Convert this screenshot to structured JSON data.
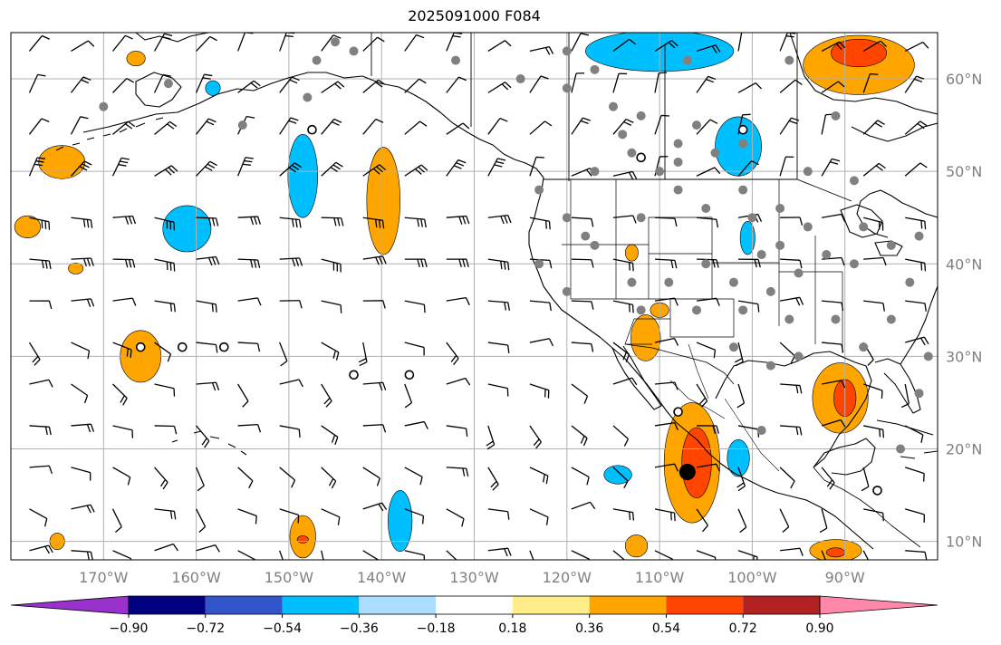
{
  "title": "2025091000 F084",
  "colors": {
    "background": "#ffffff",
    "gridline": "#b0b0b0",
    "coast": "#000000",
    "tick_label": "#808080"
  },
  "map": {
    "projection": "PlateCarree",
    "lon_range": [
      -180,
      -80
    ],
    "lat_range": [
      8,
      65
    ],
    "lat_labels": [
      {
        "lat": 60,
        "text": "60°N"
      },
      {
        "lat": 50,
        "text": "50°N"
      },
      {
        "lat": 40,
        "text": "40°N"
      },
      {
        "lat": 30,
        "text": "30°N"
      },
      {
        "lat": 20,
        "text": "20°N"
      },
      {
        "lat": 10,
        "text": "10°N"
      }
    ],
    "lon_labels": [
      {
        "lon": -170,
        "text": "170°W"
      },
      {
        "lon": -160,
        "text": "160°W"
      },
      {
        "lon": -150,
        "text": "150°W"
      },
      {
        "lon": -140,
        "text": "140°W"
      },
      {
        "lon": -130,
        "text": "130°W"
      },
      {
        "lon": -120,
        "text": "120°W"
      },
      {
        "lon": -110,
        "text": "110°W"
      },
      {
        "lon": -100,
        "text": "100°W"
      },
      {
        "lon": -90,
        "text": "90°W"
      }
    ]
  },
  "colorbar": {
    "levels": [
      "−0.90",
      "−0.72",
      "−0.54",
      "−0.36",
      "−0.18",
      "0.18",
      "0.36",
      "0.54",
      "0.72",
      "0.90"
    ],
    "colors": [
      "#9932cc",
      "#000080",
      "#3355cc",
      "#00bfff",
      "#aaddff",
      "#ffffff",
      "#ffee88",
      "#ffa500",
      "#ff4500",
      "#b22222",
      "#ff88aa"
    ]
  },
  "anomaly_regions": [
    {
      "level": "#00bfff",
      "lon": -110.0,
      "lat": 63.0,
      "rx": 8.0,
      "ry": 2.2
    },
    {
      "level": "#00bfff",
      "lon": -101.5,
      "lat": 52.7,
      "rx": 2.5,
      "ry": 3.2
    },
    {
      "level": "#00bfff",
      "lon": -148.5,
      "lat": 49.5,
      "rx": 1.6,
      "ry": 4.5
    },
    {
      "level": "#00bfff",
      "lon": -161.0,
      "lat": 43.8,
      "rx": 2.6,
      "ry": 2.5
    },
    {
      "level": "#00bfff",
      "lon": -138.0,
      "lat": 12.2,
      "rx": 1.3,
      "ry": 3.3
    },
    {
      "level": "#00bfff",
      "lon": -101.5,
      "lat": 19.0,
      "rx": 1.2,
      "ry": 2.0
    },
    {
      "level": "#00bfff",
      "lon": -114.5,
      "lat": 17.2,
      "rx": 1.5,
      "ry": 1.0
    },
    {
      "level": "#00bfff",
      "lon": -100.5,
      "lat": 42.8,
      "rx": 0.8,
      "ry": 1.8
    },
    {
      "level": "#00bfff",
      "lon": -158.2,
      "lat": 59.0,
      "rx": 0.8,
      "ry": 0.8
    },
    {
      "level": "#ffa500",
      "lon": -139.8,
      "lat": 46.8,
      "rx": 1.8,
      "ry": 5.8
    },
    {
      "level": "#ffa500",
      "lon": -174.5,
      "lat": 51.0,
      "rx": 2.5,
      "ry": 1.8
    },
    {
      "level": "#ffa500",
      "lon": -178.2,
      "lat": 44.0,
      "rx": 1.4,
      "ry": 1.2
    },
    {
      "level": "#ffa500",
      "lon": -173.0,
      "lat": 39.5,
      "rx": 0.8,
      "ry": 0.6
    },
    {
      "level": "#ffa500",
      "lon": -166.0,
      "lat": 30.0,
      "rx": 2.2,
      "ry": 2.8
    },
    {
      "level": "#ffa500",
      "lon": -148.5,
      "lat": 10.5,
      "rx": 1.4,
      "ry": 2.3
    },
    {
      "level": "#ffa500",
      "lon": -106.5,
      "lat": 18.5,
      "rx": 3.0,
      "ry": 6.5
    },
    {
      "level": "#ffa500",
      "lon": -111.5,
      "lat": 32.0,
      "rx": 1.6,
      "ry": 2.5
    },
    {
      "level": "#ffa500",
      "lon": -90.5,
      "lat": 25.5,
      "rx": 3.0,
      "ry": 3.8
    },
    {
      "level": "#ffa500",
      "lon": -88.5,
      "lat": 61.5,
      "rx": 6.0,
      "ry": 3.2
    },
    {
      "level": "#ffa500",
      "lon": -91.0,
      "lat": 9.0,
      "rx": 2.8,
      "ry": 1.2
    },
    {
      "level": "#ffa500",
      "lon": -112.5,
      "lat": 9.5,
      "rx": 1.2,
      "ry": 1.2
    },
    {
      "level": "#ffa500",
      "lon": -166.5,
      "lat": 62.2,
      "rx": 1.0,
      "ry": 0.8
    },
    {
      "level": "#ffa500",
      "lon": -113.0,
      "lat": 41.2,
      "rx": 0.7,
      "ry": 0.9
    },
    {
      "level": "#ffa500",
      "lon": -110.0,
      "lat": 35.0,
      "rx": 1.0,
      "ry": 0.8
    },
    {
      "level": "#ffa500",
      "lon": -175.0,
      "lat": 10.0,
      "rx": 0.8,
      "ry": 0.9
    },
    {
      "level": "#ff4500",
      "lon": -106.0,
      "lat": 18.5,
      "rx": 1.6,
      "ry": 3.8
    },
    {
      "level": "#ff4500",
      "lon": -90.0,
      "lat": 25.5,
      "rx": 1.2,
      "ry": 2.0
    },
    {
      "level": "#ff4500",
      "lon": -88.5,
      "lat": 62.8,
      "rx": 3.0,
      "ry": 1.5
    },
    {
      "level": "#ff4500",
      "lon": -148.5,
      "lat": 10.2,
      "rx": 0.6,
      "ry": 0.4
    },
    {
      "level": "#ff4500",
      "lon": -91.0,
      "lat": 8.8,
      "rx": 1.0,
      "ry": 0.5
    }
  ],
  "station_dots": [
    [
      -155,
      55
    ],
    [
      -148,
      58
    ],
    [
      -145,
      64
    ],
    [
      -143,
      63
    ],
    [
      -163,
      59.5
    ],
    [
      -170,
      57
    ],
    [
      -132,
      62
    ],
    [
      -125,
      60
    ],
    [
      -120,
      59
    ],
    [
      -117,
      61
    ],
    [
      -115,
      57
    ],
    [
      -114,
      54
    ],
    [
      -112,
      56
    ],
    [
      -113,
      52
    ],
    [
      -108,
      53
    ],
    [
      -106,
      55
    ],
    [
      -104,
      52
    ],
    [
      -108,
      51
    ],
    [
      -110,
      50
    ],
    [
      -117,
      50
    ],
    [
      -123,
      48
    ],
    [
      -120,
      45
    ],
    [
      -118,
      43
    ],
    [
      -123,
      40
    ],
    [
      -120,
      37
    ],
    [
      -117,
      42
    ],
    [
      -112,
      45
    ],
    [
      -108,
      48
    ],
    [
      -105,
      46
    ],
    [
      -101,
      48
    ],
    [
      -100,
      45
    ],
    [
      -97,
      46
    ],
    [
      -94,
      44
    ],
    [
      -99,
      41
    ],
    [
      -102,
      38
    ],
    [
      -105,
      40
    ],
    [
      -109,
      38
    ],
    [
      -113,
      38
    ],
    [
      -112,
      35
    ],
    [
      -106,
      35
    ],
    [
      -101,
      35
    ],
    [
      -98,
      37
    ],
    [
      -96,
      34
    ],
    [
      -91,
      34
    ],
    [
      -95,
      30
    ],
    [
      -98,
      29
    ],
    [
      -99,
      22
    ],
    [
      -95,
      39
    ],
    [
      -92,
      41
    ],
    [
      -89,
      40
    ],
    [
      -88,
      44
    ],
    [
      -85,
      42
    ],
    [
      -82,
      43
    ],
    [
      -83,
      38
    ],
    [
      -85,
      34
    ],
    [
      -88,
      31
    ],
    [
      -81,
      30
    ],
    [
      -82,
      26
    ],
    [
      -84,
      20
    ],
    [
      -102,
      31
    ],
    [
      -97,
      42
    ],
    [
      -96,
      62
    ],
    [
      -94,
      50
    ],
    [
      -91,
      56
    ],
    [
      -89,
      49
    ],
    [
      -107,
      62
    ],
    [
      -120,
      63
    ],
    [
      -147,
      62
    ],
    [
      -101,
      53
    ]
  ],
  "open_circles": [
    [
      -166,
      31
    ],
    [
      -161.5,
      31
    ],
    [
      -157,
      31
    ],
    [
      -147.5,
      54.5
    ],
    [
      -137,
      28
    ],
    [
      -143,
      28
    ],
    [
      -112,
      51.5
    ],
    [
      -101,
      54.5
    ],
    [
      -86.5,
      15.5
    ],
    [
      -108,
      24
    ]
  ],
  "big_dot": [
    -107,
    17.5
  ]
}
